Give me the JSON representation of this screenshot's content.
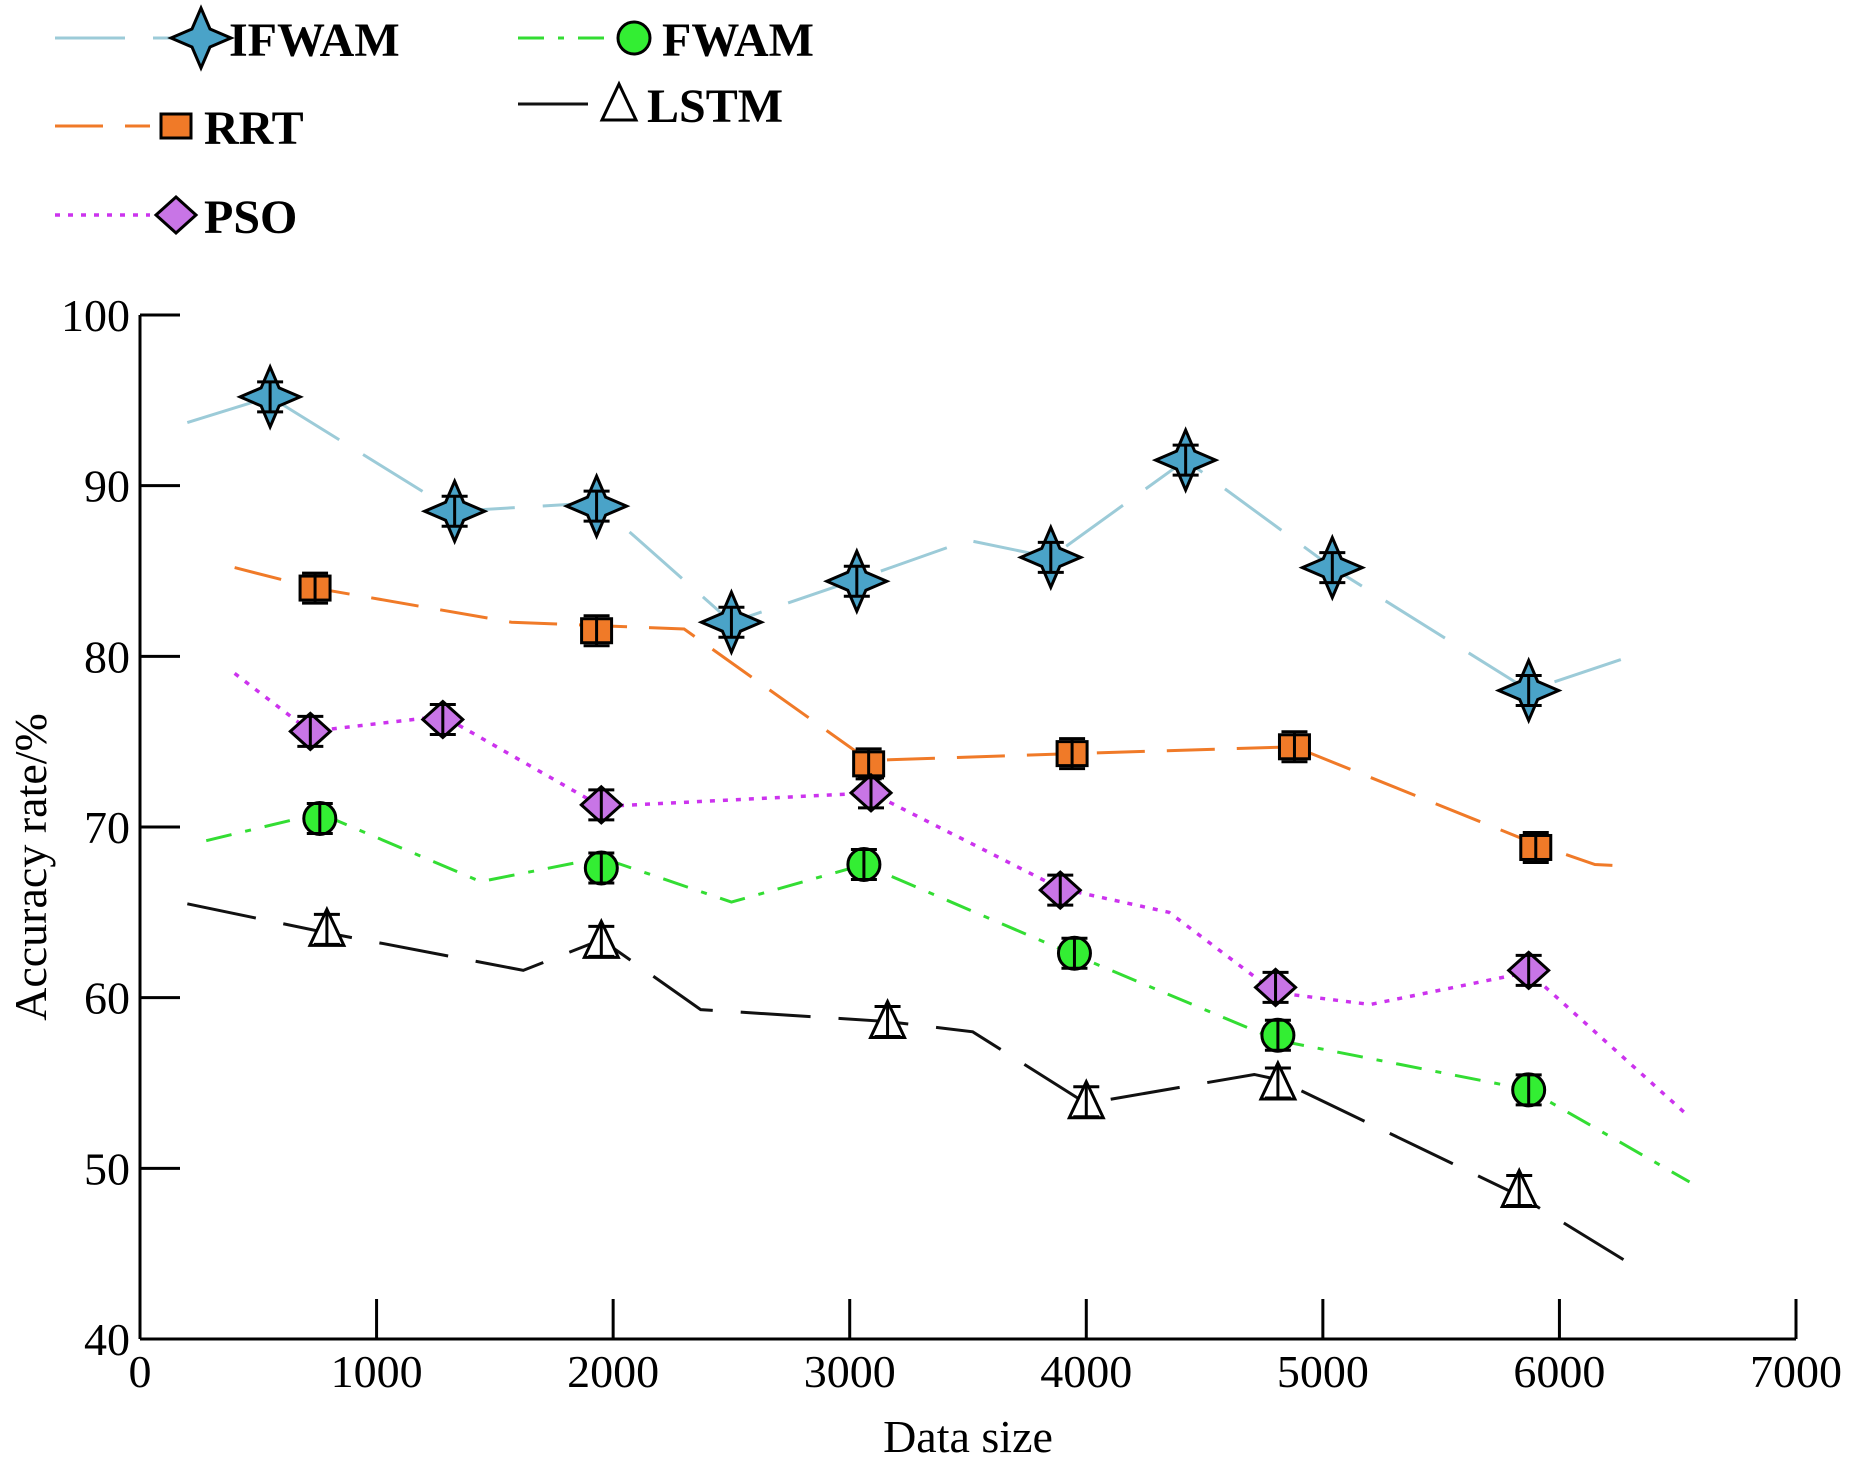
{
  "chart_data": {
    "type": "line",
    "title": "",
    "xlabel": "Data size",
    "ylabel": "Accuracy rate/%",
    "xlim": [
      0,
      7000
    ],
    "ylim": [
      40,
      100
    ],
    "xticks": [
      0,
      1000,
      2000,
      3000,
      4000,
      5000,
      6000,
      7000
    ],
    "yticks": [
      40,
      50,
      60,
      70,
      80,
      90,
      100
    ],
    "grid": false,
    "legend_position": "top-left, above plot",
    "series": [
      {
        "name": "IFWAM",
        "color": "#9ccbd8",
        "marker": "star4",
        "marker_fill": "#4aa3c8",
        "dash": "long-dash",
        "line": [
          [
            200,
            93.7
          ],
          [
            550,
            95.2
          ],
          [
            1330,
            88.5
          ],
          [
            1930,
            89.0
          ],
          [
            2500,
            82.0
          ],
          [
            3030,
            84.5
          ],
          [
            3500,
            86.8
          ],
          [
            3850,
            85.8
          ],
          [
            4420,
            91.5
          ],
          [
            5040,
            85.2
          ],
          [
            5870,
            78.0
          ],
          [
            6300,
            80.0
          ]
        ],
        "points": [
          [
            550,
            95.2
          ],
          [
            1330,
            88.5
          ],
          [
            1930,
            88.8
          ],
          [
            2500,
            82.0
          ],
          [
            3030,
            84.4
          ],
          [
            3850,
            85.8
          ],
          [
            4420,
            91.5
          ],
          [
            5040,
            85.2
          ],
          [
            5870,
            78.0
          ]
        ]
      },
      {
        "name": "RRT",
        "color": "#f07a28",
        "marker": "square",
        "marker_fill": "#f07a28",
        "dash": "dash",
        "line": [
          [
            400,
            85.2
          ],
          [
            740,
            84.0
          ],
          [
            1570,
            82.0
          ],
          [
            1930,
            81.8
          ],
          [
            2300,
            81.6
          ],
          [
            3080,
            73.9
          ],
          [
            3940,
            74.3
          ],
          [
            4880,
            74.7
          ],
          [
            5900,
            69.0
          ],
          [
            6150,
            67.8
          ],
          [
            6300,
            67.7
          ]
        ],
        "points": [
          [
            740,
            84.0
          ],
          [
            1930,
            81.5
          ],
          [
            3080,
            73.7
          ],
          [
            3940,
            74.3
          ],
          [
            4880,
            74.7
          ],
          [
            5900,
            68.8
          ]
        ]
      },
      {
        "name": "PSO",
        "color": "#cc33ee",
        "marker": "diamond",
        "marker_fill": "#c875e6",
        "dash": "dot",
        "line": [
          [
            400,
            79.0
          ],
          [
            720,
            75.6
          ],
          [
            1280,
            76.5
          ],
          [
            1950,
            71.2
          ],
          [
            3090,
            72.0
          ],
          [
            3890,
            66.4
          ],
          [
            4350,
            65.0
          ],
          [
            4800,
            60.3
          ],
          [
            5200,
            59.6
          ],
          [
            5870,
            61.5
          ],
          [
            6550,
            53.0
          ]
        ],
        "points": [
          [
            720,
            75.6
          ],
          [
            1280,
            76.3
          ],
          [
            1950,
            71.3
          ],
          [
            3090,
            72.0
          ],
          [
            3890,
            66.3
          ],
          [
            4800,
            60.6
          ],
          [
            5870,
            61.6
          ]
        ]
      },
      {
        "name": "FWAM",
        "color": "#33dd33",
        "marker": "circle",
        "marker_fill": "#33ee33",
        "dash": "dash-dot",
        "line": [
          [
            280,
            69.2
          ],
          [
            760,
            70.8
          ],
          [
            1440,
            66.8
          ],
          [
            1950,
            68.2
          ],
          [
            2500,
            65.6
          ],
          [
            3060,
            67.8
          ],
          [
            3950,
            62.5
          ],
          [
            4810,
            57.5
          ],
          [
            5870,
            54.6
          ],
          [
            6550,
            49.2
          ]
        ],
        "points": [
          [
            760,
            70.5
          ],
          [
            1950,
            67.6
          ],
          [
            3060,
            67.8
          ],
          [
            3950,
            62.6
          ],
          [
            4810,
            57.8
          ],
          [
            5870,
            54.6
          ]
        ]
      },
      {
        "name": "LSTM",
        "color": "#111111",
        "marker": "triangle",
        "marker_fill": "#ffffff",
        "dash": "long-dash",
        "line": [
          [
            200,
            65.5
          ],
          [
            790,
            63.8
          ],
          [
            1620,
            61.6
          ],
          [
            1950,
            63.4
          ],
          [
            2370,
            59.3
          ],
          [
            3160,
            58.6
          ],
          [
            3520,
            58.0
          ],
          [
            4000,
            53.8
          ],
          [
            4710,
            55.5
          ],
          [
            4810,
            55.2
          ],
          [
            5830,
            48.4
          ],
          [
            6300,
            44.4
          ]
        ],
        "points": [
          [
            790,
            64.0
          ],
          [
            1950,
            63.3
          ],
          [
            3160,
            58.6
          ],
          [
            4000,
            53.9
          ],
          [
            4810,
            55.0
          ],
          [
            5830,
            48.7
          ]
        ]
      }
    ]
  }
}
